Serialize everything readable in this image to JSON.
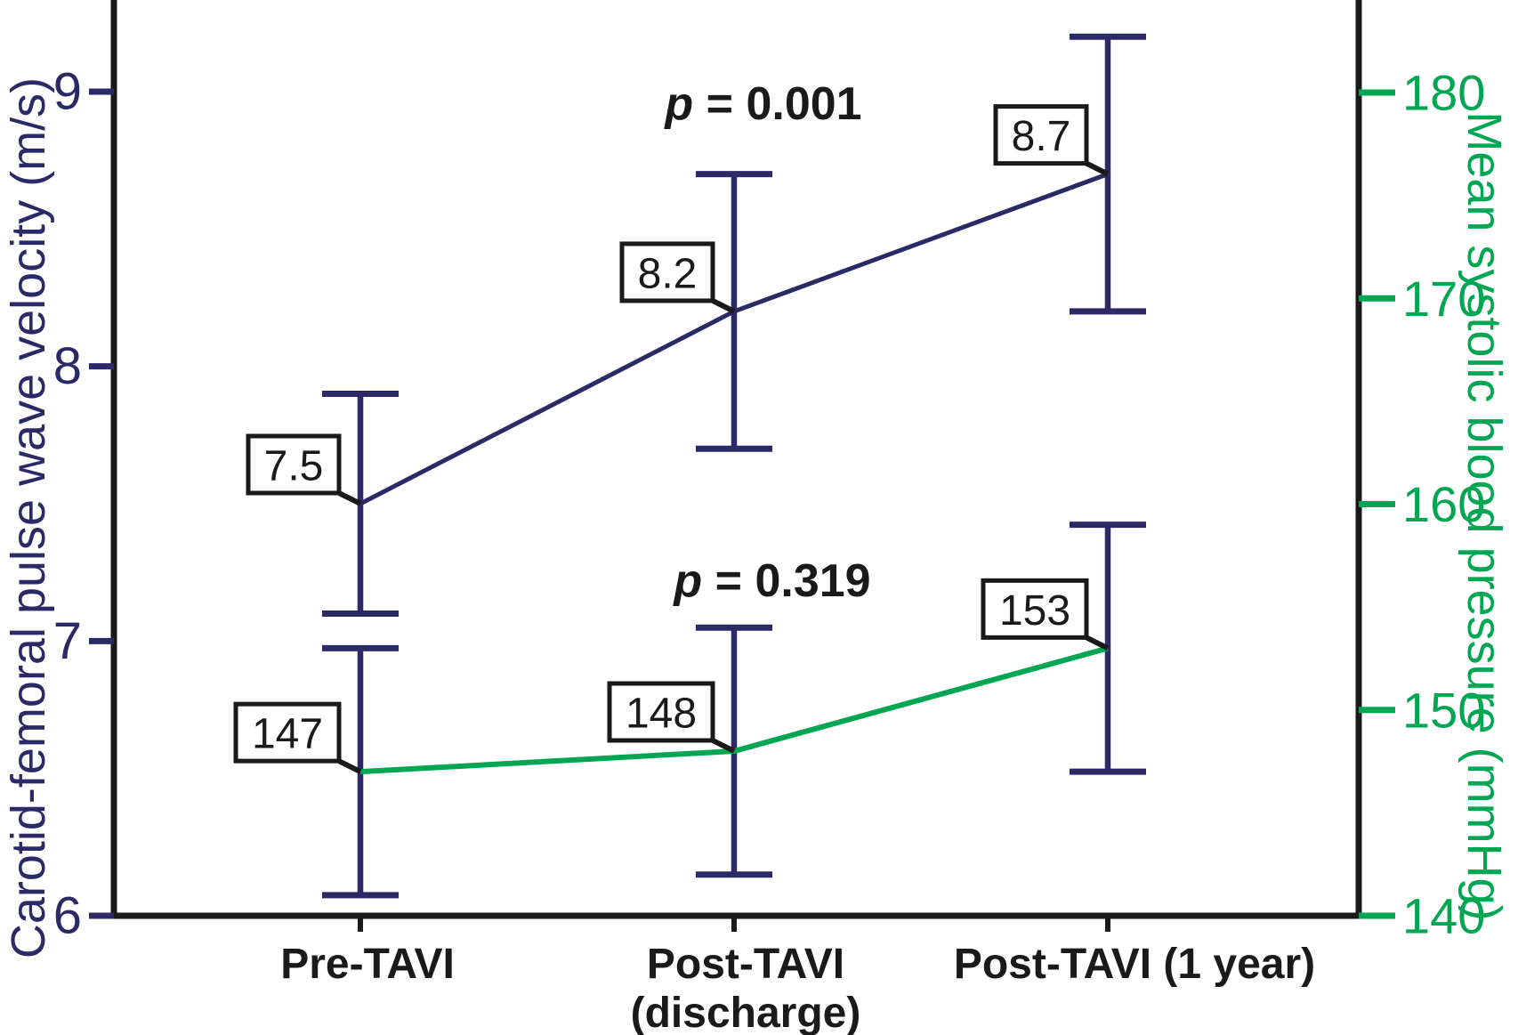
{
  "figure": {
    "background": "#ffffff"
  },
  "chart_data": {
    "type": "line",
    "title": "",
    "categories": [
      "Pre-TAVI",
      "Post-TAVI (discharge)",
      "Post-TAVI (1 year)"
    ],
    "categories_display": [
      [
        "Pre-TAVI"
      ],
      [
        "Post-TAVI",
        "(discharge)"
      ],
      [
        "Post-TAVI (1 year)"
      ]
    ],
    "left_axis": {
      "label": "Carotid-femoral pulse wave velocity (m/s)",
      "min": 6,
      "max": 9,
      "ticks": [
        "9",
        "8",
        "7",
        "6"
      ],
      "color": "#2c2a66"
    },
    "right_axis": {
      "label": "Mean systolic blood pressure (mmHg)",
      "min": 140,
      "max": 180,
      "ticks": [
        "180",
        "170",
        "160",
        "150",
        "140"
      ],
      "color": "#00a651"
    },
    "axis_color": "#1a1a1a",
    "grid": false,
    "legend": "none",
    "series": [
      {
        "name": "Carotid-femoral pulse wave velocity",
        "axis": "left",
        "color": "#2c2a66",
        "error_bar_color": "#2c2a66",
        "values": [
          7.5,
          8.2,
          8.7
        ],
        "point_labels": [
          "7.5",
          "8.2",
          "8.7"
        ],
        "error_upper": [
          7.9,
          8.7,
          9.2
        ],
        "error_lower": [
          7.1,
          7.7,
          8.2
        ],
        "p_value": "p = 0.001"
      },
      {
        "name": "Mean systolic blood pressure",
        "axis": "right",
        "color": "#00a651",
        "error_bar_color": "#2c2a66",
        "values": [
          147,
          148,
          153
        ],
        "point_labels": [
          "147",
          "148",
          "153"
        ],
        "error_upper": [
          153,
          154,
          159
        ],
        "error_lower": [
          141,
          142,
          147
        ],
        "p_value": "p = 0.319"
      }
    ],
    "annotations": [
      {
        "italic": "p",
        "text": " = 0.001"
      },
      {
        "italic": "p",
        "text": " = 0.319"
      }
    ]
  }
}
